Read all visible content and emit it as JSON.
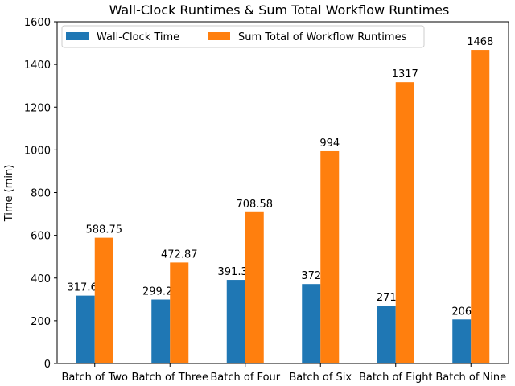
{
  "chart_data": {
    "type": "bar",
    "title": "Wall-Clock Runtimes & Sum Total Workflow Runtimes",
    "xlabel": "",
    "ylabel": "Time (min)",
    "ylim": [
      0,
      1600
    ],
    "yticks": [
      0,
      200,
      400,
      600,
      800,
      1000,
      1200,
      1400,
      1600
    ],
    "categories": [
      "Batch of Two",
      "Batch of Three",
      "Batch of Four",
      "Batch of Six",
      "Batch of Eight",
      "Batch of Nine"
    ],
    "series": [
      {
        "name": "Wall-Clock Time",
        "color": "#1f77b4",
        "values": [
          317.65,
          299.25,
          391.33,
          372,
          271,
          206
        ],
        "labels": [
          "317.65",
          "299.25",
          "391.33",
          "372",
          "271",
          "206"
        ]
      },
      {
        "name": "Sum Total of Workflow Runtimes",
        "color": "#ff7f0e",
        "values": [
          588.75,
          472.87,
          708.58,
          994,
          1317,
          1468
        ],
        "labels": [
          "588.75",
          "472.87",
          "708.58",
          "994",
          "1317",
          "1468"
        ]
      }
    ],
    "legend": "top-left",
    "grid": false
  }
}
